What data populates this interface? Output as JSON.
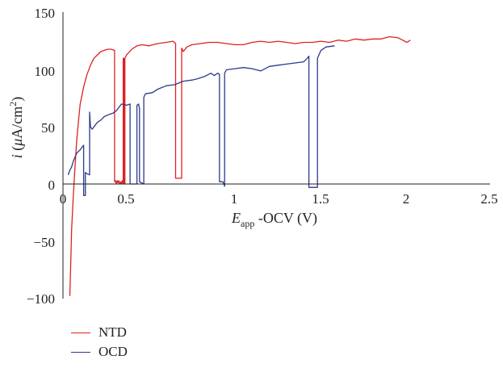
{
  "chart_data": {
    "type": "line",
    "x_tick_labels": [
      "0",
      "0.5",
      "1",
      "1.5",
      "2",
      "2.5"
    ],
    "y_tick_labels": [
      "150",
      "100",
      "50",
      "0",
      "−50",
      "−100"
    ],
    "xlabel": {
      "italic": "E",
      "sub": "app",
      "rest": " -OCV (V)"
    },
    "ylabel": {
      "italic": "i",
      "open": " (",
      "mu": "μ",
      "unit": "A/cm",
      "sup": "2",
      "close": ")"
    },
    "xlim": [
      0,
      2.5
    ],
    "ylim": [
      -100,
      150
    ],
    "series": [
      {
        "name": "NTD",
        "color": "#e02020",
        "points": [
          [
            0.04,
            -98
          ],
          [
            0.045,
            -70
          ],
          [
            0.05,
            -40
          ],
          [
            0.06,
            -10
          ],
          [
            0.07,
            15
          ],
          [
            0.08,
            38
          ],
          [
            0.09,
            55
          ],
          [
            0.1,
            70
          ],
          [
            0.12,
            85
          ],
          [
            0.14,
            96
          ],
          [
            0.16,
            104
          ],
          [
            0.18,
            110
          ],
          [
            0.2,
            113
          ],
          [
            0.22,
            116
          ],
          [
            0.24,
            117
          ],
          [
            0.26,
            118
          ],
          [
            0.28,
            118
          ],
          [
            0.3,
            117
          ],
          [
            0.3,
            2
          ],
          [
            0.305,
            3
          ],
          [
            0.31,
            0
          ],
          [
            0.315,
            3
          ],
          [
            0.32,
            1
          ],
          [
            0.325,
            3
          ],
          [
            0.33,
            0
          ],
          [
            0.335,
            2
          ],
          [
            0.34,
            0
          ],
          [
            0.345,
            3
          ],
          [
            0.35,
            0
          ],
          [
            0.35,
            110
          ],
          [
            0.355,
            110
          ],
          [
            0.355,
            0
          ],
          [
            0.36,
            0
          ],
          [
            0.36,
            110
          ],
          [
            0.37,
            113
          ],
          [
            0.4,
            118
          ],
          [
            0.43,
            121
          ],
          [
            0.46,
            122
          ],
          [
            0.5,
            121
          ],
          [
            0.55,
            123
          ],
          [
            0.6,
            124
          ],
          [
            0.64,
            125
          ],
          [
            0.655,
            123
          ],
          [
            0.655,
            5
          ],
          [
            0.69,
            5
          ],
          [
            0.69,
            119
          ],
          [
            0.7,
            116
          ],
          [
            0.72,
            120
          ],
          [
            0.75,
            122
          ],
          [
            0.8,
            123
          ],
          [
            0.85,
            124
          ],
          [
            0.9,
            124
          ],
          [
            0.95,
            123
          ],
          [
            1.0,
            122
          ],
          [
            1.05,
            122
          ],
          [
            1.1,
            124
          ],
          [
            1.15,
            125
          ],
          [
            1.2,
            124
          ],
          [
            1.25,
            125
          ],
          [
            1.3,
            124
          ],
          [
            1.35,
            123
          ],
          [
            1.4,
            124
          ],
          [
            1.45,
            124
          ],
          [
            1.5,
            125
          ],
          [
            1.55,
            124
          ],
          [
            1.6,
            126
          ],
          [
            1.65,
            125
          ],
          [
            1.7,
            127
          ],
          [
            1.75,
            126
          ],
          [
            1.8,
            127
          ],
          [
            1.85,
            127
          ],
          [
            1.9,
            129
          ],
          [
            1.95,
            128
          ],
          [
            2.0,
            124
          ],
          [
            2.02,
            126
          ]
        ]
      },
      {
        "name": "OCD",
        "color": "#2c3a8c",
        "points": [
          [
            0.03,
            8
          ],
          [
            0.04,
            12
          ],
          [
            0.05,
            15
          ],
          [
            0.06,
            20
          ],
          [
            0.08,
            27
          ],
          [
            0.1,
            30
          ],
          [
            0.12,
            34
          ],
          [
            0.12,
            -10
          ],
          [
            0.13,
            -10
          ],
          [
            0.13,
            10
          ],
          [
            0.14,
            9
          ],
          [
            0.155,
            8
          ],
          [
            0.155,
            63
          ],
          [
            0.16,
            50
          ],
          [
            0.17,
            48
          ],
          [
            0.18,
            50
          ],
          [
            0.2,
            54
          ],
          [
            0.22,
            56
          ],
          [
            0.24,
            59
          ],
          [
            0.27,
            61
          ],
          [
            0.29,
            62
          ],
          [
            0.31,
            64
          ],
          [
            0.34,
            70
          ],
          [
            0.37,
            69
          ],
          [
            0.39,
            70
          ],
          [
            0.39,
            0
          ],
          [
            0.43,
            0
          ],
          [
            0.43,
            69
          ],
          [
            0.44,
            70
          ],
          [
            0.445,
            66
          ],
          [
            0.445,
            2
          ],
          [
            0.47,
            0
          ],
          [
            0.47,
            76
          ],
          [
            0.48,
            79
          ],
          [
            0.52,
            80
          ],
          [
            0.55,
            83
          ],
          [
            0.6,
            86
          ],
          [
            0.65,
            87
          ],
          [
            0.7,
            90
          ],
          [
            0.75,
            91
          ],
          [
            0.78,
            92
          ],
          [
            0.82,
            94
          ],
          [
            0.86,
            97
          ],
          [
            0.88,
            95
          ],
          [
            0.9,
            97
          ],
          [
            0.91,
            96
          ],
          [
            0.91,
            2
          ],
          [
            0.93,
            2
          ],
          [
            0.94,
            -2
          ],
          [
            0.94,
            97
          ],
          [
            0.95,
            100
          ],
          [
            1.0,
            101
          ],
          [
            1.05,
            102
          ],
          [
            1.1,
            101
          ],
          [
            1.15,
            99
          ],
          [
            1.2,
            103
          ],
          [
            1.25,
            104
          ],
          [
            1.3,
            105
          ],
          [
            1.35,
            106
          ],
          [
            1.4,
            107
          ],
          [
            1.42,
            110
          ],
          [
            1.43,
            112
          ],
          [
            1.43,
            -3
          ],
          [
            1.48,
            -3
          ],
          [
            1.48,
            110
          ],
          [
            1.5,
            117
          ],
          [
            1.53,
            120
          ],
          [
            1.58,
            121
          ]
        ]
      }
    ]
  }
}
